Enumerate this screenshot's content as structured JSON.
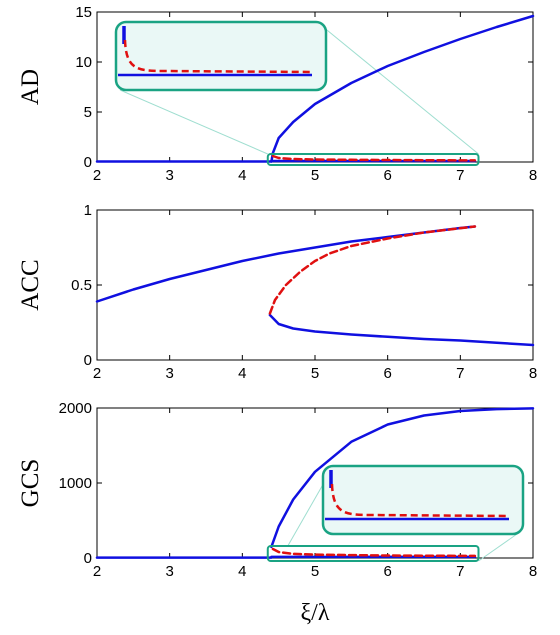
{
  "colors": {
    "solid": "#1010e0",
    "dashed": "#e01010",
    "inset_stroke": "#1aa383",
    "inset_fill": "#eaf8f6",
    "axis": "#000000"
  },
  "xlabel": "ξ/λ",
  "chart_data": [
    {
      "type": "line",
      "ylabel": "AD",
      "xlim": [
        2,
        8
      ],
      "ylim": [
        0,
        15
      ],
      "xticks": [
        "2",
        "3",
        "4",
        "5",
        "6",
        "7",
        "8"
      ],
      "yticks": [
        "0",
        "5",
        "10",
        "15"
      ],
      "xtick_values": [
        2,
        3,
        4,
        5,
        6,
        7,
        8
      ],
      "ytick_values": [
        0,
        5,
        10,
        15
      ],
      "series": [
        {
          "style": "solid",
          "x": [
            2,
            4.4
          ],
          "y": [
            0.05,
            0.05
          ]
        },
        {
          "style": "solid",
          "x": [
            4.4,
            4.42,
            4.5,
            4.7,
            5.0,
            5.5,
            6.0,
            6.5,
            7.0,
            7.5,
            8.0
          ],
          "y": [
            0.05,
            0.9,
            2.4,
            4.0,
            5.8,
            7.9,
            9.6,
            11.0,
            12.3,
            13.5,
            14.6
          ]
        },
        {
          "style": "solid",
          "x": [
            4.4,
            7.2
          ],
          "y": [
            0.1,
            0.1
          ]
        },
        {
          "style": "dashed",
          "x": [
            4.42,
            4.5,
            4.7,
            5.0,
            5.5,
            6.0,
            6.5,
            7.2
          ],
          "y": [
            0.6,
            0.4,
            0.3,
            0.25,
            0.22,
            0.2,
            0.18,
            0.16
          ]
        }
      ],
      "zoom_box": {
        "xlim": [
          4.35,
          7.25
        ],
        "ylim": [
          -0.3,
          0.8
        ]
      },
      "inset_box": {
        "xlim": [
          2.25,
          5.1
        ],
        "ylim": [
          7.0,
          13.5
        ]
      }
    },
    {
      "type": "line",
      "ylabel": "ACC",
      "xlim": [
        2,
        8
      ],
      "ylim": [
        0,
        1
      ],
      "xticks": [
        "2",
        "3",
        "4",
        "5",
        "6",
        "7",
        "8"
      ],
      "yticks": [
        "0",
        "0.5",
        "1"
      ],
      "xtick_values": [
        2,
        3,
        4,
        5,
        6,
        7,
        8
      ],
      "ytick_values": [
        0,
        0.5,
        1
      ],
      "series": [
        {
          "style": "solid",
          "x": [
            2.0,
            2.5,
            3.0,
            3.5,
            4.0,
            4.5,
            5.0,
            5.5,
            6.0,
            6.5,
            7.0,
            7.2
          ],
          "y": [
            0.39,
            0.47,
            0.54,
            0.6,
            0.66,
            0.71,
            0.75,
            0.79,
            0.82,
            0.85,
            0.88,
            0.89
          ]
        },
        {
          "style": "solid",
          "x": [
            4.38,
            4.5,
            4.7,
            5.0,
            5.5,
            6.0,
            6.5,
            7.0,
            7.5,
            8.0
          ],
          "y": [
            0.3,
            0.24,
            0.21,
            0.19,
            0.17,
            0.155,
            0.14,
            0.13,
            0.115,
            0.1
          ]
        },
        {
          "style": "dashed",
          "x": [
            4.38,
            4.45,
            4.6,
            4.8,
            5.0,
            5.2,
            5.5,
            6.0,
            6.5,
            7.2
          ],
          "y": [
            0.31,
            0.4,
            0.5,
            0.59,
            0.66,
            0.71,
            0.76,
            0.81,
            0.85,
            0.89
          ]
        }
      ]
    },
    {
      "type": "line",
      "ylabel": "GCS",
      "xlim": [
        2,
        8
      ],
      "ylim": [
        0,
        2000
      ],
      "xticks": [
        "2",
        "3",
        "4",
        "5",
        "6",
        "7",
        "8"
      ],
      "yticks": [
        "0",
        "1000",
        "2000"
      ],
      "xtick_values": [
        2,
        3,
        4,
        5,
        6,
        7,
        8
      ],
      "ytick_values": [
        0,
        1000,
        2000
      ],
      "series": [
        {
          "style": "solid",
          "x": [
            2,
            4.4
          ],
          "y": [
            5,
            5
          ]
        },
        {
          "style": "solid",
          "x": [
            4.4,
            4.5,
            4.7,
            5.0,
            5.5,
            6.0,
            6.5,
            7.0,
            7.5,
            8.0
          ],
          "y": [
            150,
            420,
            780,
            1150,
            1550,
            1780,
            1900,
            1960,
            1985,
            1995
          ]
        },
        {
          "style": "solid",
          "x": [
            4.4,
            7.2
          ],
          "y": [
            15,
            15
          ]
        },
        {
          "style": "dashed",
          "x": [
            4.42,
            4.5,
            4.7,
            5.0,
            5.5,
            6.0,
            6.5,
            7.2
          ],
          "y": [
            120,
            80,
            55,
            45,
            38,
            34,
            31,
            28
          ]
        }
      ],
      "zoom_box": {
        "xlim": [
          4.35,
          7.25
        ],
        "ylim": [
          -40,
          160
        ]
      },
      "inset_box": {
        "xlim": [
          4.05,
          7.5
        ],
        "ylim": [
          350,
          1200
        ]
      }
    }
  ]
}
